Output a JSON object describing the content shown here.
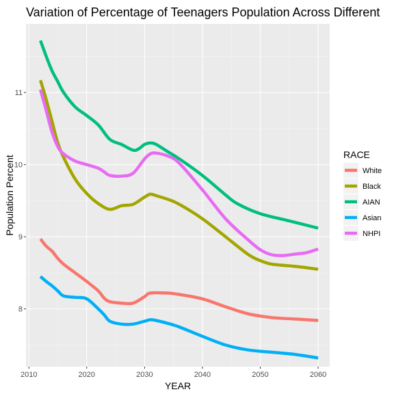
{
  "chart_data": {
    "type": "line",
    "title": "Variation of Percentage of Teenagers Population Across Different",
    "xlabel": "YEAR",
    "ylabel": "Population Percent",
    "xlim": [
      2009.5,
      2062
    ],
    "ylim": [
      7.2,
      11.95
    ],
    "xticks": [
      2010,
      2020,
      2030,
      2040,
      2050,
      2060
    ],
    "yticks": [
      8,
      9,
      10,
      11
    ],
    "grid": true,
    "legend": {
      "title": "RACE",
      "position": "right"
    },
    "series": [
      {
        "name": "White",
        "color": "#f8766d",
        "x": [
          2012,
          2013,
          2014,
          2015,
          2016,
          2018,
          2020,
          2022,
          2023,
          2024,
          2026,
          2028,
          2030,
          2031,
          2034,
          2036,
          2040,
          2044,
          2048,
          2052,
          2056,
          2060
        ],
        "y": [
          8.97,
          8.87,
          8.8,
          8.7,
          8.62,
          8.5,
          8.38,
          8.25,
          8.15,
          8.1,
          8.08,
          8.08,
          8.17,
          8.22,
          8.22,
          8.2,
          8.14,
          8.03,
          7.93,
          7.88,
          7.86,
          7.84
        ]
      },
      {
        "name": "Black",
        "color": "#a3a500",
        "x": [
          2012,
          2013,
          2014,
          2015,
          2016,
          2018,
          2020,
          2022,
          2024,
          2026,
          2028,
          2030,
          2031,
          2032,
          2034,
          2036,
          2040,
          2044,
          2048,
          2050,
          2052,
          2056,
          2060
        ],
        "y": [
          11.17,
          10.9,
          10.6,
          10.3,
          10.1,
          9.8,
          9.6,
          9.46,
          9.38,
          9.43,
          9.45,
          9.55,
          9.59,
          9.57,
          9.52,
          9.45,
          9.25,
          9.0,
          8.75,
          8.67,
          8.62,
          8.59,
          8.55
        ]
      },
      {
        "name": "AIAN",
        "color": "#00bf7d",
        "x": [
          2012,
          2013,
          2014,
          2015,
          2016,
          2018,
          2020,
          2022,
          2024,
          2026,
          2028,
          2029,
          2030,
          2031,
          2032,
          2034,
          2036,
          2040,
          2044,
          2046,
          2050,
          2055,
          2060
        ],
        "y": [
          11.72,
          11.5,
          11.3,
          11.15,
          11.0,
          10.8,
          10.68,
          10.55,
          10.35,
          10.28,
          10.2,
          10.22,
          10.28,
          10.3,
          10.28,
          10.18,
          10.08,
          9.85,
          9.58,
          9.46,
          9.32,
          9.22,
          9.12
        ]
      },
      {
        "name": "Asian",
        "color": "#00b0f6",
        "x": [
          2012,
          2013,
          2014,
          2015,
          2016,
          2018,
          2020,
          2022,
          2023,
          2024,
          2026,
          2028,
          2030,
          2031,
          2032,
          2034,
          2036,
          2040,
          2044,
          2048,
          2052,
          2056,
          2060
        ],
        "y": [
          8.45,
          8.38,
          8.32,
          8.25,
          8.18,
          8.16,
          8.14,
          8.0,
          7.92,
          7.83,
          7.79,
          7.79,
          7.83,
          7.85,
          7.84,
          7.8,
          7.75,
          7.62,
          7.5,
          7.43,
          7.4,
          7.37,
          7.32
        ]
      },
      {
        "name": "NHPI",
        "color": "#e76bf3",
        "x": [
          2012,
          2013,
          2014,
          2015,
          2016,
          2018,
          2020,
          2022,
          2023,
          2024,
          2026,
          2028,
          2030,
          2031,
          2032,
          2034,
          2036,
          2040,
          2044,
          2048,
          2050,
          2052,
          2054,
          2056,
          2058,
          2060
        ],
        "y": [
          11.04,
          10.75,
          10.45,
          10.25,
          10.15,
          10.05,
          10.0,
          9.95,
          9.9,
          9.85,
          9.84,
          9.88,
          10.08,
          10.15,
          10.16,
          10.12,
          10.02,
          9.65,
          9.25,
          8.95,
          8.82,
          8.75,
          8.74,
          8.76,
          8.78,
          8.83
        ]
      }
    ]
  }
}
